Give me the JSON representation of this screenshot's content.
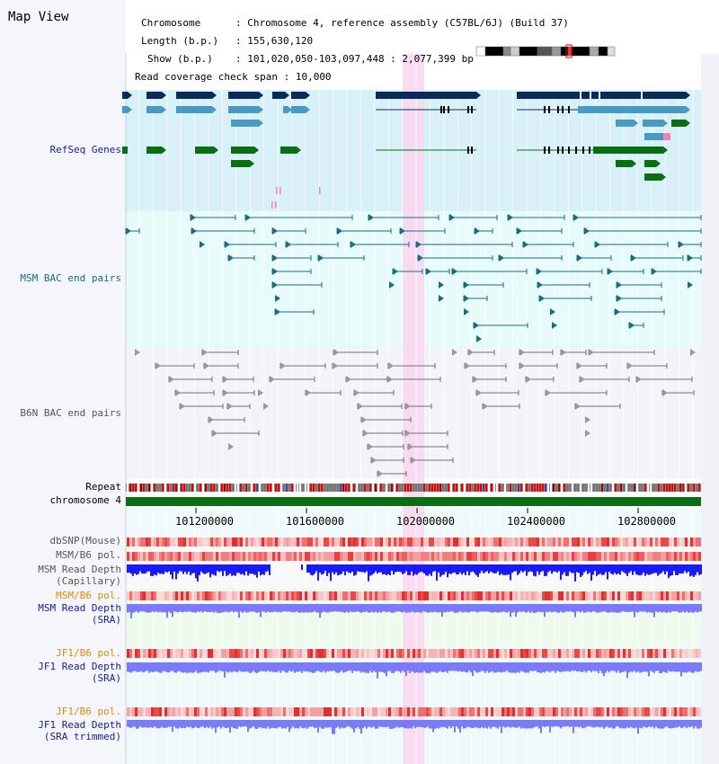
{
  "view_title": "Map View",
  "header": {
    "chromosome_label": "Chromosome",
    "chromosome_value": ": Chromosome 4, reference assembly (C57BL/6J) (Build 37)",
    "length_label": "Length (b.p.)",
    "length_value": ": 155,630,120",
    "show_label": "Show (b.p.)",
    "show_value": ": 101,020,050-103,097,448 : 2,077,399 bp",
    "coverage_label": "Read coverage check span",
    "coverage_value": ": 10,000"
  },
  "tracks": {
    "refseq": "RefSeq Genes",
    "msm_bac": "MSM BAC end pairs",
    "b6n_bac": "B6N BAC end pairs",
    "repeat": "Repeat",
    "chromosome": "chromosome 4",
    "dbsnp": "dbSNP(Mouse)",
    "msm_b6_pol_1": "MSM/B6 pol.",
    "msm_depth_cap_1": "MSM Read Depth",
    "msm_depth_cap_2": "(Capillary)",
    "msm_b6_pol_2": "MSM/B6 pol.",
    "msm_depth_sra_1": "MSM Read Depth",
    "msm_depth_sra_2": "(SRA)",
    "jf1_b6_pol_1": "JF1/B6 pol.",
    "jf1_depth_sra_1": "JF1 Read Depth",
    "jf1_depth_sra_2": "(SRA)",
    "jf1_b6_pol_2": "JF1/B6 pol.",
    "jf1_depth_tr_1": "JF1 Read Depth",
    "jf1_depth_tr_2": "(SRA trimmed)"
  },
  "axis_ticks": [
    "101200000",
    "101600000",
    "102000000",
    "102400000",
    "102800000"
  ],
  "colors": {
    "refseq_bg": "#d8f0f8",
    "msm_bg": "#e8fbfb",
    "b6n_bg": "#f2f4f8",
    "highlight": "#f8d8f0",
    "dark_gene": "#0a2a5a",
    "light_gene": "#4a9ac0",
    "green_gene": "#0a6e12",
    "msm_bac": "#1a6a8a",
    "b6n_bac": "#707070",
    "chrom": "#0a6e12",
    "depth_blue": "#1a1aff",
    "depth_violet": "#7a7aff",
    "label_navy": "#1a1a9a",
    "label_orange": "#e08a00"
  }
}
